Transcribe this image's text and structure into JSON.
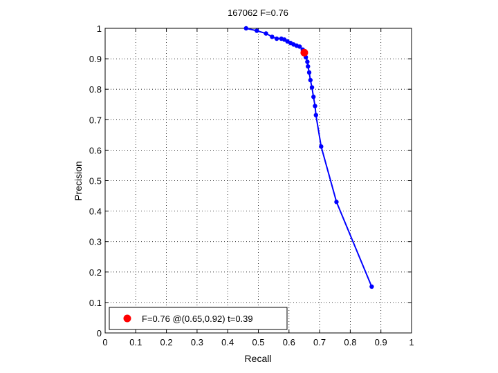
{
  "chart_data": {
    "type": "line",
    "title": "167062 F=0.76",
    "xlabel": "Recall",
    "ylabel": "Precision",
    "xlim": [
      0,
      1
    ],
    "ylim": [
      0,
      1
    ],
    "xticks": [
      0,
      0.1,
      0.2,
      0.3,
      0.4,
      0.5,
      0.6,
      0.7,
      0.8,
      0.9,
      1
    ],
    "xtick_labels": [
      "0",
      "0.1",
      "0.2",
      "0.3",
      "0.4",
      "0.5",
      "0.6",
      "0.7",
      "0.8",
      "0.9",
      "1"
    ],
    "yticks": [
      0,
      0.1,
      0.2,
      0.3,
      0.4,
      0.5,
      0.6,
      0.7,
      0.8,
      0.9,
      1
    ],
    "ytick_labels": [
      "0",
      "0.1",
      "0.2",
      "0.3",
      "0.4",
      "0.5",
      "0.6",
      "0.7",
      "0.8",
      "0.9",
      "1"
    ],
    "grid": true,
    "grid_style": "dotted",
    "series": [
      {
        "color": "#0000ff",
        "marker": "dot",
        "points": [
          [
            0.46,
            1.0
          ],
          [
            0.495,
            0.992
          ],
          [
            0.525,
            0.983
          ],
          [
            0.545,
            0.972
          ],
          [
            0.56,
            0.966
          ],
          [
            0.575,
            0.966
          ],
          [
            0.585,
            0.963
          ],
          [
            0.595,
            0.957
          ],
          [
            0.605,
            0.952
          ],
          [
            0.615,
            0.947
          ],
          [
            0.625,
            0.943
          ],
          [
            0.635,
            0.94
          ],
          [
            0.645,
            0.93
          ],
          [
            0.655,
            0.905
          ],
          [
            0.66,
            0.89
          ],
          [
            0.662,
            0.875
          ],
          [
            0.666,
            0.855
          ],
          [
            0.67,
            0.83
          ],
          [
            0.675,
            0.806
          ],
          [
            0.68,
            0.775
          ],
          [
            0.685,
            0.745
          ],
          [
            0.688,
            0.715
          ],
          [
            0.705,
            0.612
          ],
          [
            0.755,
            0.43
          ],
          [
            0.87,
            0.152
          ]
        ]
      }
    ],
    "highlight": {
      "color": "#ff0000",
      "point": [
        0.65,
        0.92
      ],
      "label": "F=0.76 @(0.65,0.92) t=0.39"
    },
    "legend": {
      "placement": "bottom-left",
      "entries": [
        "F=0.76 @(0.65,0.92) t=0.39"
      ]
    }
  }
}
